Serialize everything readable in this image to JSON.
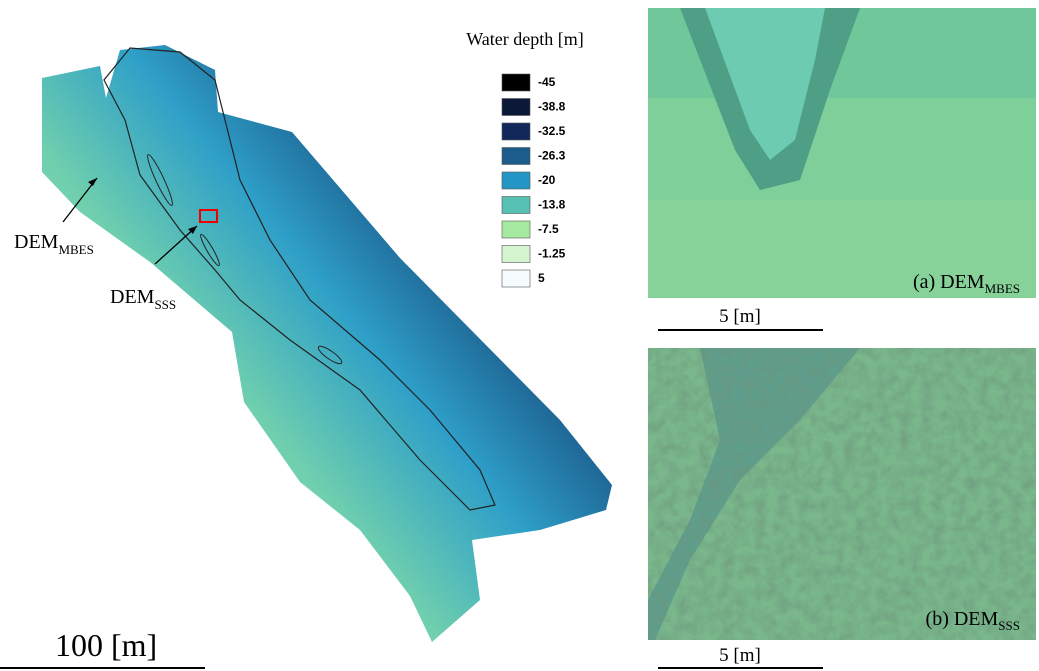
{
  "legend": {
    "title": "Water depth [m]",
    "items": [
      {
        "label": "-45",
        "color": "#000000"
      },
      {
        "label": "-38.8",
        "color": "#0b1838"
      },
      {
        "label": "-32.5",
        "color": "#12275a"
      },
      {
        "label": "-26.3",
        "color": "#1c5c8c"
      },
      {
        "label": "-20",
        "color": "#2396c6"
      },
      {
        "label": "-13.8",
        "color": "#56c0b4"
      },
      {
        "label": "-7.5",
        "color": "#a6eaa0"
      },
      {
        "label": "-1.25",
        "color": "#d4f5d0"
      },
      {
        "label": "5",
        "color": "#f6fbfd"
      }
    ]
  },
  "map_labels": [
    {
      "main": "DEM",
      "sub": "MBES"
    },
    {
      "main": "DEM",
      "sub": "SSS"
    }
  ],
  "panels": [
    {
      "label": "(a) DEM",
      "sub": "MBES",
      "scale": "5 [m]"
    },
    {
      "label": "(b) DEM",
      "sub": "SSS",
      "scale": "5 [m]"
    }
  ],
  "map_scale": "100 [m]"
}
